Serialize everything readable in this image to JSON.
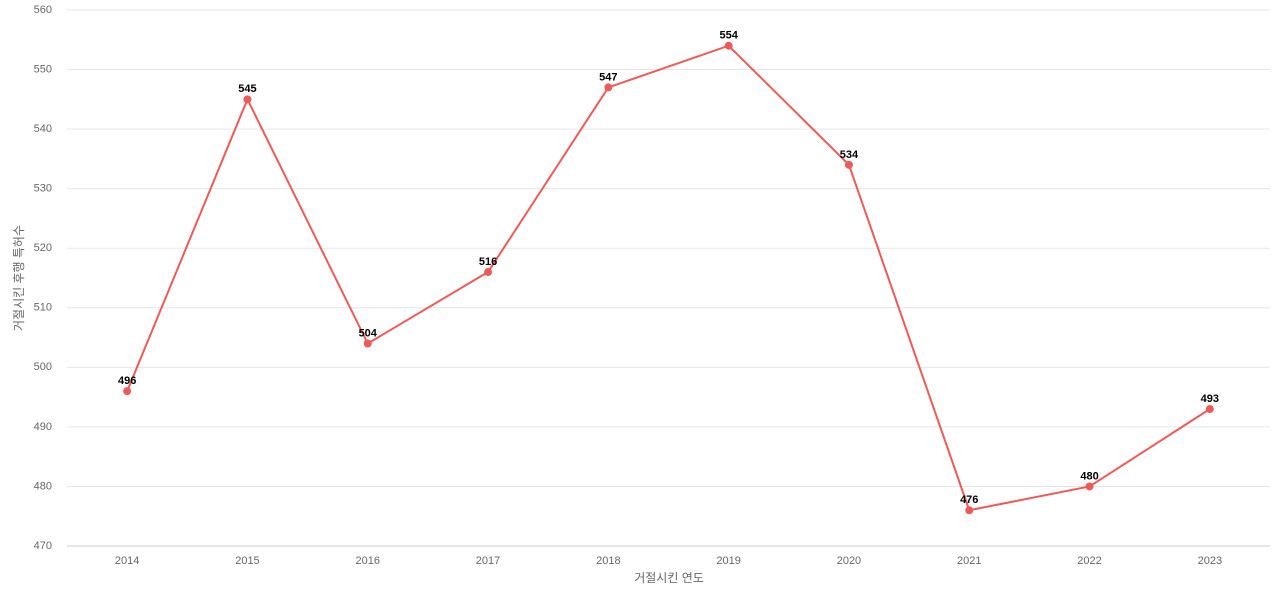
{
  "chart_data": {
    "type": "line",
    "x_label": "거절시킨 연도",
    "y_label": "거절시킨 후행 특허수",
    "categories": [
      "2014",
      "2015",
      "2016",
      "2017",
      "2018",
      "2019",
      "2020",
      "2021",
      "2022",
      "2023"
    ],
    "values": [
      496,
      545,
      504,
      516,
      547,
      554,
      534,
      476,
      480,
      493
    ],
    "color": "#ee5a5a",
    "ylim": [
      470,
      560
    ],
    "yticks": [
      470,
      480,
      490,
      500,
      510,
      520,
      530,
      540,
      550,
      560
    ],
    "grid": true
  }
}
